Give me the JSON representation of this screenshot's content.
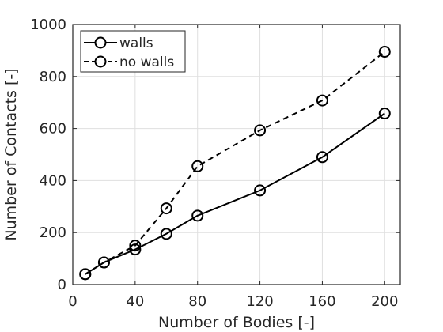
{
  "chart_data": {
    "type": "line",
    "xlabel": "Number of Bodies [-]",
    "ylabel": "Number of Contacts [-]",
    "xlim": [
      0,
      210
    ],
    "ylim": [
      0,
      1000
    ],
    "xticks": [
      0,
      40,
      80,
      120,
      160,
      200
    ],
    "yticks": [
      0,
      200,
      400,
      600,
      800,
      1000
    ],
    "grid": true,
    "legend_position": "top-left",
    "series": [
      {
        "name": "walls",
        "line_style": "solid",
        "marker": "circle",
        "x": [
          8,
          20,
          40,
          60,
          80,
          120,
          160,
          200
        ],
        "y": [
          40,
          85,
          135,
          195,
          265,
          362,
          490,
          658
        ]
      },
      {
        "name": "no walls",
        "line_style": "dashed",
        "marker": "circle",
        "x": [
          8,
          20,
          40,
          60,
          80,
          120,
          160,
          200
        ],
        "y": [
          40,
          85,
          150,
          293,
          455,
          593,
          708,
          895
        ]
      }
    ]
  }
}
